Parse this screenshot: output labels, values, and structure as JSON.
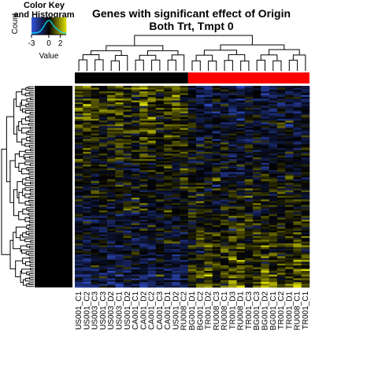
{
  "chart_data": {
    "type": "heatmap",
    "title_line1": "Genes with significant effect of Origin",
    "title_line2": "Both Trt, Tmpt 0",
    "color_key": {
      "title_line1": "Color Key",
      "title_line2": "and Histogram",
      "ylabel": "Count",
      "xlabel": "Value",
      "ticks": [
        "-3",
        "0",
        "2"
      ],
      "range": [
        -3,
        3
      ],
      "low_color": "#3355dd",
      "mid_color": "#000000",
      "high_color": "#dddd00",
      "density_color": "#00e5ff"
    },
    "column_labels": [
      "US001_C1",
      "US001_C2",
      "US003_C3",
      "US001_C3",
      "US003_D2",
      "US003_C1",
      "US001_D2",
      "CA001_C1",
      "CA001_D2",
      "CA001_C2",
      "CA001_C3",
      "CA001_D1",
      "US001_D2",
      "RU008_C2",
      "BG001_D1",
      "BG001_C2",
      "TR001_D2",
      "RU008_C3",
      "RU008_C1",
      "TR001_D3",
      "RU008_D1",
      "TR001_C3",
      "BG001_C3",
      "BG001_D2",
      "BG001_C1",
      "TR001_C2",
      "TR001_D1",
      "RU008_C1",
      "TR001_C1"
    ],
    "column_groups": {
      "colors": [
        "#000000",
        "#ff0000"
      ],
      "sizes": [
        14,
        15
      ]
    },
    "row_count": 110,
    "pattern": "Group 1 columns show mostly high (yellow) values in the upper rows and low (blue) in lower rows; group 2 columns show the opposite"
  }
}
